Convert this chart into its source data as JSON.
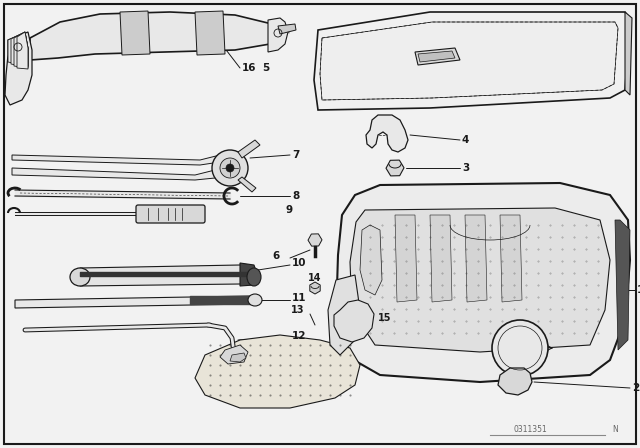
{
  "bg_color": "#f2f2f2",
  "line_color": "#1a1a1a",
  "white": "#ffffff",
  "light_gray": "#e8e8e8",
  "mid_gray": "#cccccc",
  "dark_gray": "#888888",
  "fig_width": 6.4,
  "fig_height": 4.48,
  "dpi": 100,
  "part_number": "0311351"
}
